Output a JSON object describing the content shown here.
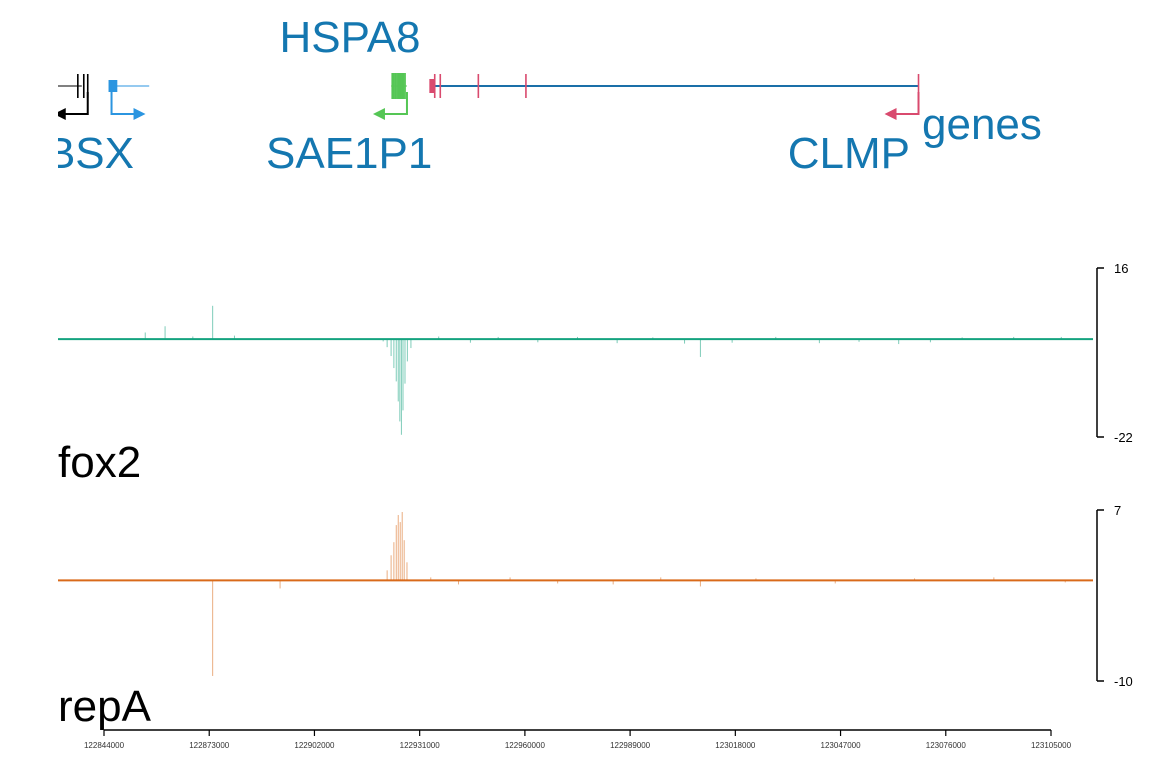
{
  "chart_data": {
    "type": "genome-browser",
    "region": {
      "start": 122844000,
      "end": 123105000
    },
    "gene_track": {
      "title": "genes",
      "genes": [
        {
          "name": "BSX",
          "label": "BSX",
          "start": 122837000,
          "end": 122850000,
          "strand": "-",
          "color": "#000000",
          "exons": [
            122849000,
            122850500,
            122851500
          ]
        },
        {
          "name": "HSPA8",
          "label": "HSPA8",
          "start": 122928000,
          "end": 122932000,
          "strand": "-",
          "color": "#55c655",
          "exons": [
            122928300,
            122928700,
            122929100,
            122929500,
            122929900,
            122930300,
            122930700,
            122931100,
            122931500
          ]
        },
        {
          "name": "SAE1P1",
          "label": "SAE1P1",
          "start": 122858000,
          "end": 122867000,
          "strand": "+",
          "color": "#2b95e0",
          "exons": [
            122857500,
            122858200
          ]
        },
        {
          "name": "CLMP",
          "label": "CLMP",
          "start": 122938000,
          "end": 123061000,
          "strand": "-",
          "color": "#1a6fa8",
          "exon_color": "#d94a6e",
          "exons": [
            122938400,
            122939000,
            122940400,
            122950000,
            122962000,
            123061000
          ]
        }
      ]
    },
    "tracks": [
      {
        "name": "fox2",
        "label": "fox2",
        "color": "#14a37f",
        "ymax": 16,
        "ymin": -22,
        "ytick_labels": [
          "16",
          "-22"
        ],
        "peaks": [
          {
            "x": 122883000,
            "y": 7.5
          },
          {
            "x": 122871000,
            "y": 2.9
          },
          {
            "x": 122866000,
            "y": 1.5
          },
          {
            "x": 122878000,
            "y": 0.6
          },
          {
            "x": 122888500,
            "y": 0.8
          },
          {
            "x": 122926000,
            "y": -0.5
          },
          {
            "x": 122927000,
            "y": -1.8
          },
          {
            "x": 122928000,
            "y": -3.8
          },
          {
            "x": 122928700,
            "y": -6.5
          },
          {
            "x": 122929300,
            "y": -9.5
          },
          {
            "x": 122929800,
            "y": -14.0
          },
          {
            "x": 122930200,
            "y": -18.5
          },
          {
            "x": 122930600,
            "y": -21.5
          },
          {
            "x": 122931000,
            "y": -16.0
          },
          {
            "x": 122931500,
            "y": -10.0
          },
          {
            "x": 122932100,
            "y": -5.0
          },
          {
            "x": 122933000,
            "y": -2.0
          },
          {
            "x": 122940000,
            "y": 0.6
          },
          {
            "x": 122948000,
            "y": -0.8
          },
          {
            "x": 122955000,
            "y": 0.5
          },
          {
            "x": 122965000,
            "y": -0.7
          },
          {
            "x": 122975000,
            "y": 0.5
          },
          {
            "x": 122985000,
            "y": -0.9
          },
          {
            "x": 122994000,
            "y": 0.4
          },
          {
            "x": 123002000,
            "y": -1.0
          },
          {
            "x": 123006000,
            "y": -4.0
          },
          {
            "x": 123014000,
            "y": -0.8
          },
          {
            "x": 123025000,
            "y": 0.5
          },
          {
            "x": 123036000,
            "y": -0.9
          },
          {
            "x": 123046000,
            "y": -0.6
          },
          {
            "x": 123056000,
            "y": -1.1
          },
          {
            "x": 123064000,
            "y": -0.7
          },
          {
            "x": 123072000,
            "y": 0.4
          },
          {
            "x": 123085000,
            "y": 0.5
          },
          {
            "x": 123097000,
            "y": 0.5
          }
        ]
      },
      {
        "name": "repA",
        "label": "repA",
        "color": "#d96a1a",
        "ymax": 7,
        "ymin": -10,
        "ytick_labels": [
          "7",
          "-10"
        ],
        "peaks": [
          {
            "x": 122883000,
            "y": -9.5
          },
          {
            "x": 122900000,
            "y": -0.8
          },
          {
            "x": 122927000,
            "y": 1.0
          },
          {
            "x": 122928000,
            "y": 2.5
          },
          {
            "x": 122928700,
            "y": 3.8
          },
          {
            "x": 122929300,
            "y": 5.5
          },
          {
            "x": 122929800,
            "y": 6.5
          },
          {
            "x": 122930300,
            "y": 5.8
          },
          {
            "x": 122930800,
            "y": 6.8
          },
          {
            "x": 122931300,
            "y": 4.0
          },
          {
            "x": 122932000,
            "y": 1.8
          },
          {
            "x": 122938000,
            "y": 0.3
          },
          {
            "x": 122945000,
            "y": -0.4
          },
          {
            "x": 122958000,
            "y": 0.3
          },
          {
            "x": 122970000,
            "y": -0.3
          },
          {
            "x": 122984000,
            "y": -0.4
          },
          {
            "x": 122996000,
            "y": 0.3
          },
          {
            "x": 123006000,
            "y": -0.6
          },
          {
            "x": 123020000,
            "y": 0.2
          },
          {
            "x": 123040000,
            "y": -0.3
          },
          {
            "x": 123060000,
            "y": 0.2
          },
          {
            "x": 123080000,
            "y": 0.3
          },
          {
            "x": 123098000,
            "y": -0.2
          }
        ]
      }
    ],
    "x_axis": {
      "ticks": [
        122844000,
        122873000,
        122902000,
        122931000,
        122960000,
        122989000,
        123018000,
        123047000,
        123076000,
        123105000
      ],
      "tick_labels": [
        "122844000",
        "122873000",
        "122902000",
        "122931000",
        "122960000",
        "122989000",
        "123018000",
        "123047000",
        "123076000",
        "123105000"
      ]
    },
    "grid": false
  }
}
